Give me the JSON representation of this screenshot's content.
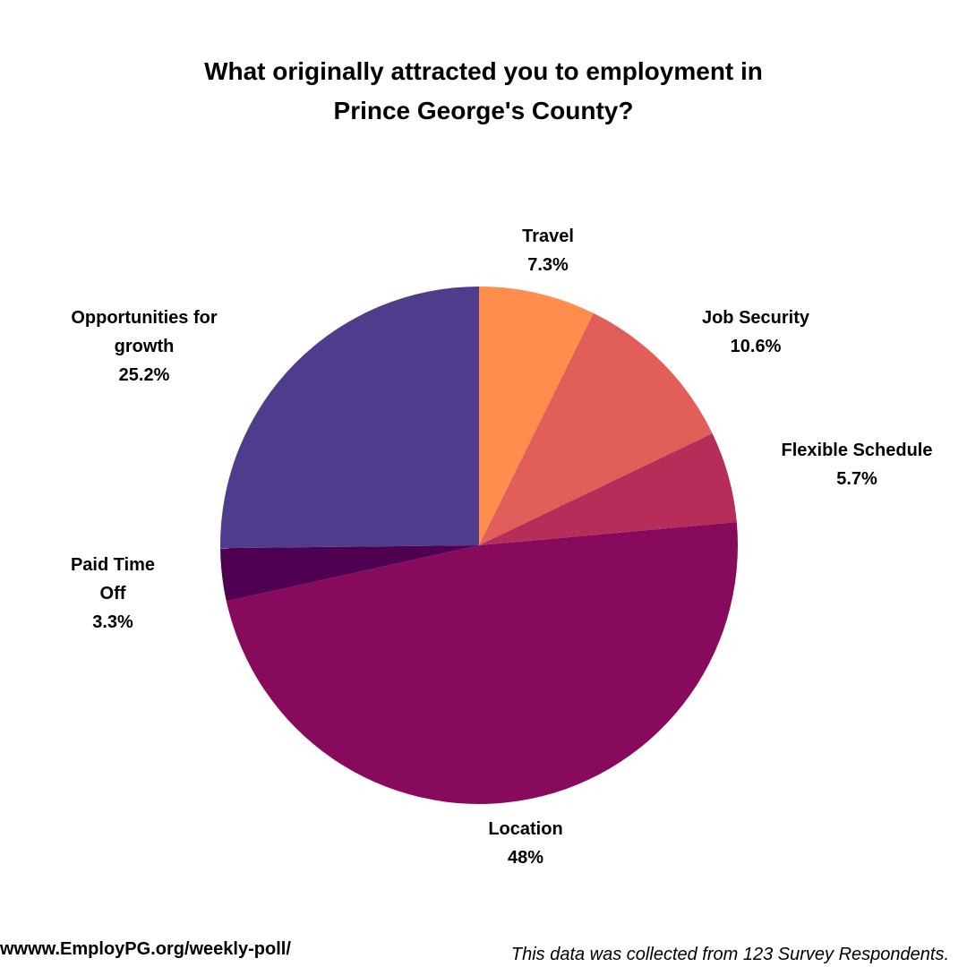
{
  "chart_data": {
    "type": "pie",
    "title_lines": [
      "What originally attracted you to employment in",
      "Prince George's County?"
    ],
    "slices": [
      {
        "key": "travel",
        "label_lines": [
          "Travel"
        ],
        "value": 7.3,
        "value_label": "7.3%",
        "color": "#FF8E4C"
      },
      {
        "key": "job-security",
        "label_lines": [
          "Job Security"
        ],
        "value": 10.6,
        "value_label": "10.6%",
        "color": "#E25E58"
      },
      {
        "key": "flexible-schedule",
        "label_lines": [
          "Flexible Schedule"
        ],
        "value": 5.7,
        "value_label": "5.7%",
        "color": "#B72D5A"
      },
      {
        "key": "location",
        "label_lines": [
          "Location"
        ],
        "value": 48,
        "value_label": "48%",
        "color": "#880A5C"
      },
      {
        "key": "paid-time-off",
        "label_lines": [
          "Paid Time",
          "Off"
        ],
        "value": 3.3,
        "value_label": "3.3%",
        "color": "#4F0050"
      },
      {
        "key": "opportunities-for-growth",
        "label_lines": [
          "Opportunities for",
          "growth"
        ],
        "value": 25.2,
        "value_label": "25.2%",
        "color": "#503C8C"
      }
    ],
    "start_angle_deg": 0,
    "direction": "clockwise"
  },
  "footer": {
    "url": "wwww.EmployPG.org/weekly-poll/",
    "note": "This data was collected from 123 Survey Respondents."
  }
}
